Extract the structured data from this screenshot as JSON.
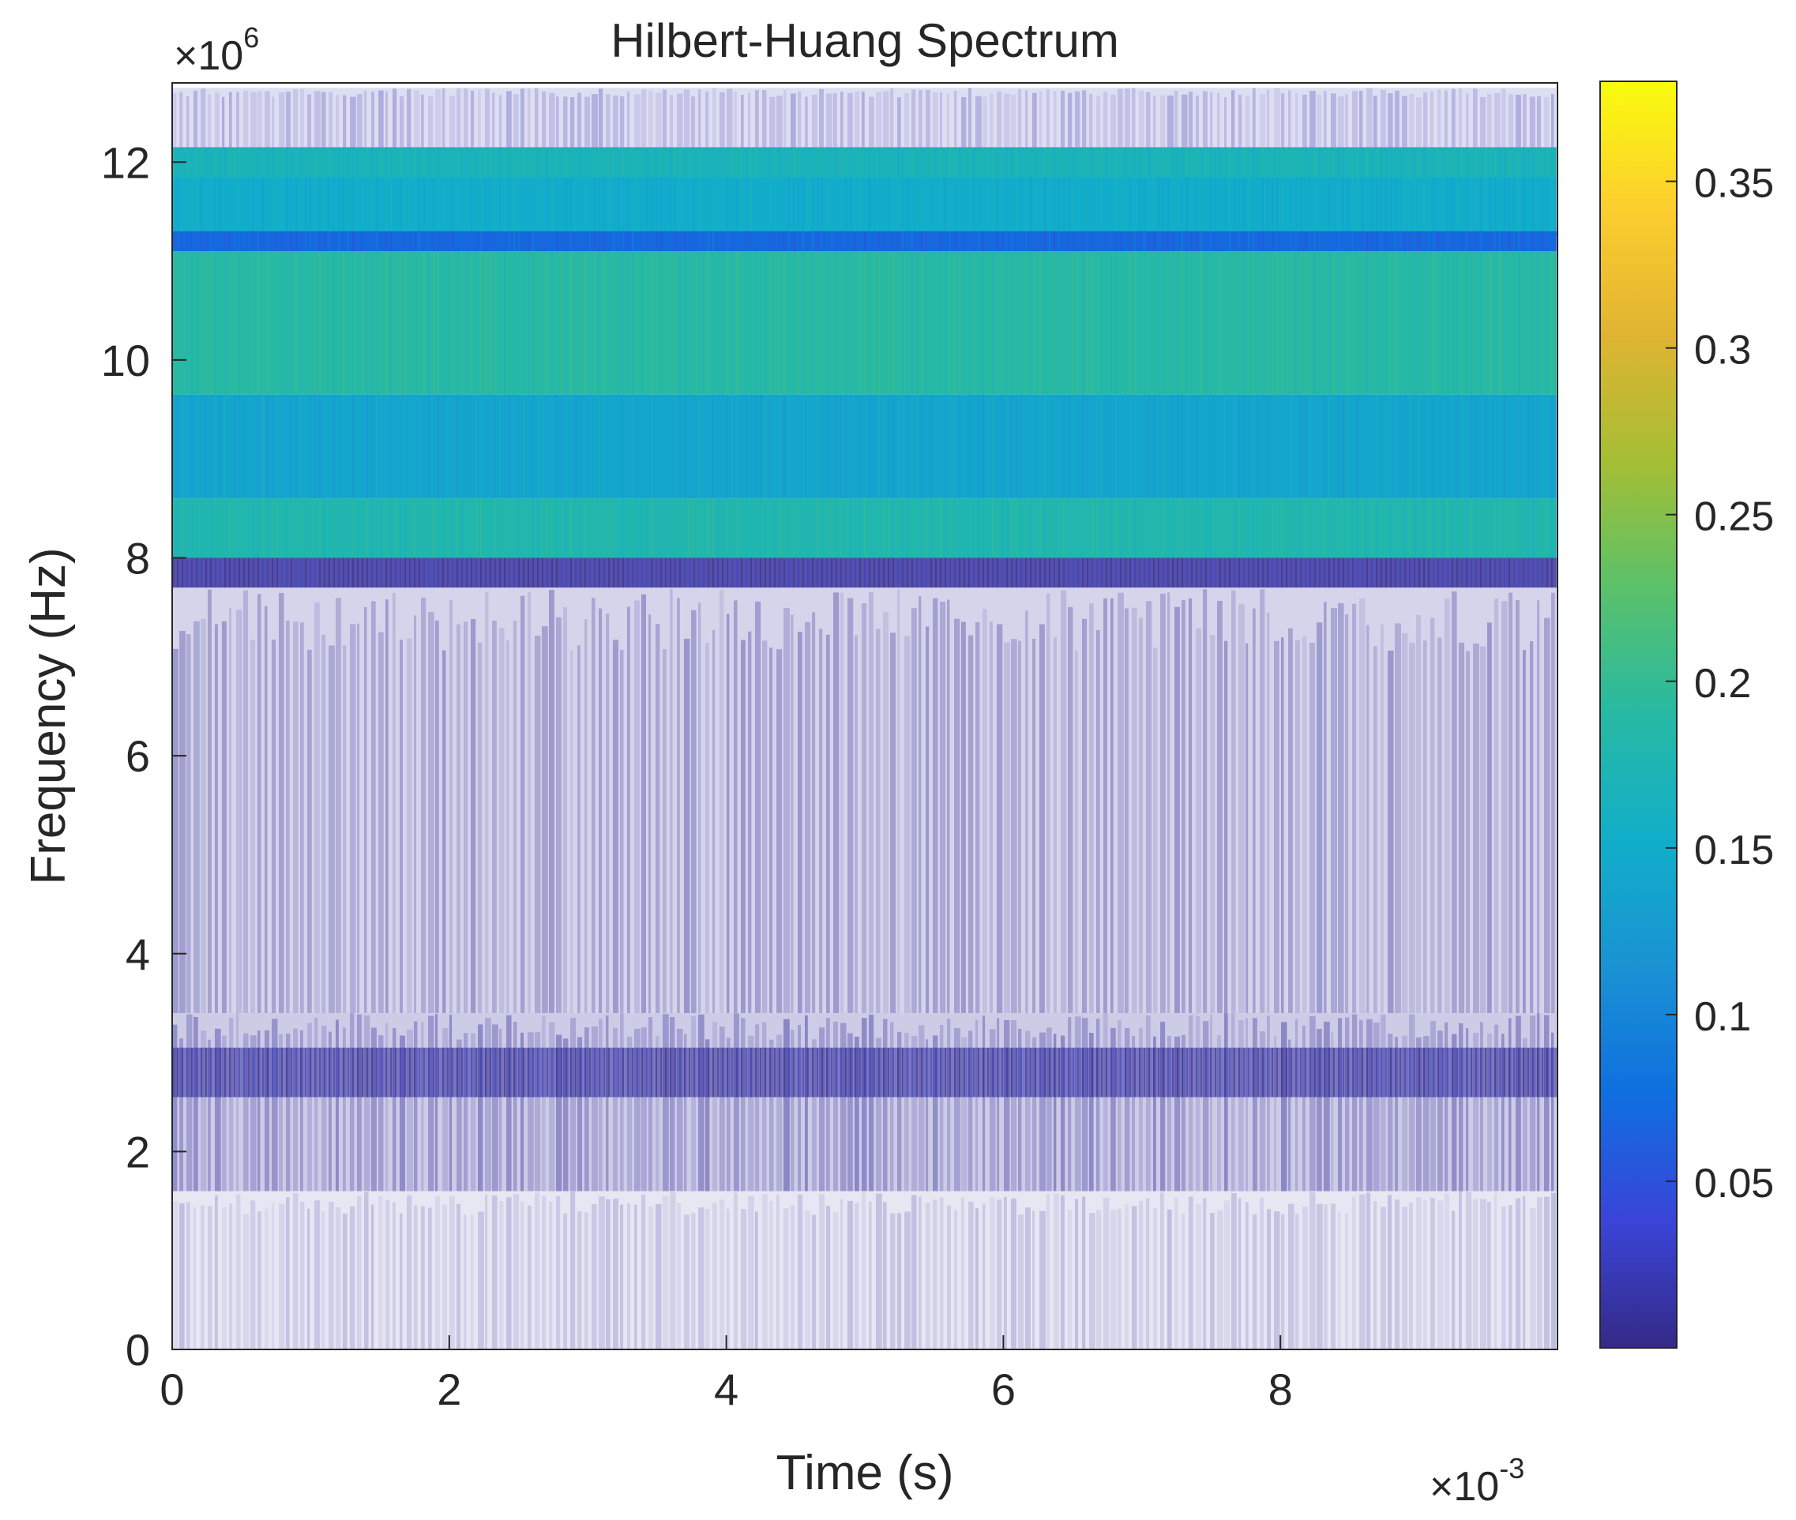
{
  "chart_data": {
    "type": "heatmap",
    "title": "Hilbert-Huang Spectrum",
    "xlabel": "Time (s)",
    "ylabel": "Frequency (Hz)",
    "x_exponent_label": "×10",
    "x_exponent": "-3",
    "y_exponent_label": "×10",
    "y_exponent": "6",
    "xlim": [
      0,
      10
    ],
    "ylim": [
      0,
      12.8
    ],
    "x_unit_scale": 0.001,
    "y_unit_scale": 1000000,
    "xticks": [
      0,
      2,
      4,
      6,
      8
    ],
    "xtick_labels": [
      "0",
      "2",
      "4",
      "6",
      "8"
    ],
    "yticks": [
      0,
      2,
      4,
      6,
      8,
      10,
      12
    ],
    "ytick_labels": [
      "0",
      "2",
      "4",
      "6",
      "8",
      "10",
      "12"
    ],
    "x_data_end": 9.99,
    "colorbar": {
      "colormap": "parula",
      "lim": [
        0.0,
        0.38
      ],
      "ticks": [
        0.05,
        0.1,
        0.15,
        0.2,
        0.25,
        0.3,
        0.35
      ],
      "tick_labels": [
        "0.05",
        "0.1",
        "0.15",
        "0.2",
        "0.25",
        "0.3",
        "0.35"
      ],
      "stops": [
        "#352a87",
        "#3a44d8",
        "#0f6fe0",
        "#1a92d3",
        "#11aeca",
        "#27b9a4",
        "#5ac16a",
        "#a5be34",
        "#e0b432",
        "#fcce2e",
        "#f9fb0e"
      ]
    },
    "bands": [
      {
        "name": "top-sparse",
        "f_low": 12.1,
        "f_high": 12.75,
        "amplitude": 0.02,
        "opacity": 0.3,
        "striped": true
      },
      {
        "name": "band-upper-1",
        "f_low": 11.85,
        "f_high": 12.15,
        "amplitude": 0.17,
        "opacity": 1.0,
        "striped": false
      },
      {
        "name": "band-upper-2",
        "f_low": 11.25,
        "f_high": 11.85,
        "amplitude": 0.15,
        "opacity": 1.0,
        "striped": false
      },
      {
        "name": "band-upper-divider",
        "f_low": 11.1,
        "f_high": 11.3,
        "amplitude": 0.07,
        "opacity": 1.0,
        "striped": false
      },
      {
        "name": "band-mid",
        "f_low": 9.65,
        "f_high": 11.1,
        "amplitude": 0.19,
        "opacity": 1.0,
        "striped": false
      },
      {
        "name": "band-main",
        "f_low": 8.6,
        "f_high": 9.65,
        "amplitude": 0.14,
        "opacity": 1.0,
        "striped": false
      },
      {
        "name": "band-lower",
        "f_low": 8.0,
        "f_high": 8.6,
        "amplitude": 0.18,
        "opacity": 1.0,
        "striped": false
      },
      {
        "name": "edge-dark",
        "f_low": 7.7,
        "f_high": 8.0,
        "amplitude": 0.01,
        "opacity": 0.85,
        "striped": false
      },
      {
        "name": "fade-upper",
        "f_low": 3.4,
        "f_high": 7.7,
        "amplitude": 0.01,
        "opacity": 0.38,
        "striped": true
      },
      {
        "name": "band-low-halo",
        "f_low": 1.6,
        "f_high": 3.4,
        "amplitude": 0.01,
        "opacity": 0.45,
        "striped": true
      },
      {
        "name": "band-low-core",
        "f_low": 2.55,
        "f_high": 3.05,
        "amplitude": 0.01,
        "opacity": 0.55,
        "striped": false
      },
      {
        "name": "fade-bottom",
        "f_low": 0.0,
        "f_high": 1.6,
        "amplitude": 0.01,
        "opacity": 0.22,
        "striped": true
      }
    ]
  }
}
